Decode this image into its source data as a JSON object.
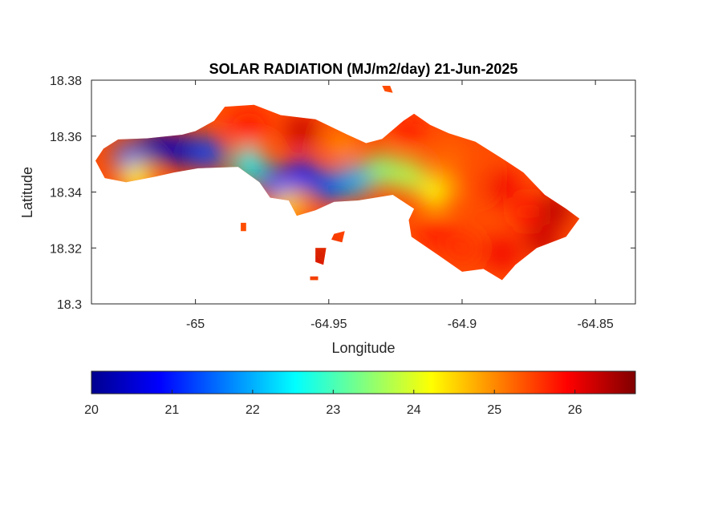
{
  "chart_data": {
    "type": "heatmap",
    "title": "SOLAR RADIATION (MJ/m2/day) 21-Jun-2025",
    "xlabel": "Longitude",
    "ylabel": "Latitude",
    "xlim": [
      -65.039,
      -64.835
    ],
    "ylim": [
      18.3,
      18.38
    ],
    "x_ticks": [
      -65,
      -64.95,
      -64.9,
      -64.85
    ],
    "y_ticks": [
      18.3,
      18.32,
      18.34,
      18.36,
      18.38
    ],
    "x_tick_labels": [
      "-65",
      "-64.95",
      "-64.9",
      "-64.85"
    ],
    "y_tick_labels": [
      "18.3",
      "18.32",
      "18.34",
      "18.36",
      "18.38"
    ],
    "grid": false,
    "colormap": "jet",
    "colorbar": {
      "orientation": "horizontal",
      "location": "below",
      "limits": [
        20,
        26.75
      ],
      "ticks": [
        20,
        21,
        22,
        23,
        24,
        25,
        26
      ],
      "tick_labels": [
        "20",
        "21",
        "22",
        "23",
        "24",
        "25",
        "26"
      ],
      "colors": [
        "#00008f",
        "#0000ff",
        "#0080ff",
        "#00ffff",
        "#80ff80",
        "#ffff00",
        "#ff8000",
        "#ff0000",
        "#800000"
      ]
    },
    "island_outline": [
      [
        -65.0375,
        18.3512
      ],
      [
        -65.0345,
        18.3555
      ],
      [
        -65.029,
        18.3588
      ],
      [
        -65.018,
        18.3592
      ],
      [
        -65.005,
        18.3605
      ],
      [
        -65.0,
        18.3618
      ],
      [
        -64.993,
        18.3655
      ],
      [
        -64.989,
        18.3705
      ],
      [
        -64.978,
        18.3712
      ],
      [
        -64.968,
        18.3675
      ],
      [
        -64.955,
        18.366
      ],
      [
        -64.943,
        18.3605
      ],
      [
        -64.936,
        18.3575
      ],
      [
        -64.93,
        18.359
      ],
      [
        -64.922,
        18.3655
      ],
      [
        -64.918,
        18.368
      ],
      [
        -64.912,
        18.364
      ],
      [
        -64.905,
        18.361
      ],
      [
        -64.895,
        18.358
      ],
      [
        -64.885,
        18.352
      ],
      [
        -64.877,
        18.347
      ],
      [
        -64.869,
        18.339
      ],
      [
        -64.861,
        18.334
      ],
      [
        -64.856,
        18.3305
      ],
      [
        -64.861,
        18.324
      ],
      [
        -64.872,
        18.32
      ],
      [
        -64.88,
        18.314
      ],
      [
        -64.885,
        18.3085
      ],
      [
        -64.892,
        18.3125
      ],
      [
        -64.9,
        18.3115
      ],
      [
        -64.909,
        18.3175
      ],
      [
        -64.919,
        18.324
      ],
      [
        -64.92,
        18.33
      ],
      [
        -64.918,
        18.334
      ],
      [
        -64.926,
        18.339
      ],
      [
        -64.939,
        18.337
      ],
      [
        -64.948,
        18.3365
      ],
      [
        -64.955,
        18.3335
      ],
      [
        -64.962,
        18.3315
      ],
      [
        -64.965,
        18.337
      ],
      [
        -64.972,
        18.338
      ],
      [
        -64.976,
        18.3435
      ],
      [
        -64.984,
        18.349
      ],
      [
        -64.999,
        18.3485
      ],
      [
        -65.008,
        18.347
      ],
      [
        -65.015,
        18.3455
      ],
      [
        -65.026,
        18.3435
      ],
      [
        -65.034,
        18.345
      ]
    ],
    "islets": [
      [
        [
          -64.948,
          18.325
        ],
        [
          -64.944,
          18.326
        ],
        [
          -64.945,
          18.322
        ],
        [
          -64.949,
          18.323
        ]
      ],
      [
        [
          -64.955,
          18.32
        ],
        [
          -64.951,
          18.32
        ],
        [
          -64.952,
          18.314
        ],
        [
          -64.955,
          18.315
        ]
      ],
      [
        [
          -64.957,
          18.3098
        ],
        [
          -64.954,
          18.3098
        ],
        [
          -64.954,
          18.3085
        ],
        [
          -64.957,
          18.3085
        ]
      ],
      [
        [
          -64.93,
          18.378
        ],
        [
          -64.927,
          18.378
        ],
        [
          -64.926,
          18.3755
        ],
        [
          -64.929,
          18.376
        ]
      ],
      [
        [
          -64.983,
          18.329
        ],
        [
          -64.981,
          18.329
        ],
        [
          -64.981,
          18.326
        ],
        [
          -64.983,
          18.326
        ]
      ]
    ],
    "radiation_samples": [
      {
        "lon": -65.025,
        "lat": 18.352,
        "value": 21.5
      },
      {
        "lon": -65.022,
        "lat": 18.345,
        "value": 24.3
      },
      {
        "lon": -65.015,
        "lat": 18.356,
        "value": 20.3
      },
      {
        "lon": -65.005,
        "lat": 18.355,
        "value": 20.4
      },
      {
        "lon": -64.995,
        "lat": 18.354,
        "value": 21.3
      },
      {
        "lon": -64.98,
        "lat": 18.35,
        "value": 22.5
      },
      {
        "lon": -64.97,
        "lat": 18.343,
        "value": 21.3
      },
      {
        "lon": -64.96,
        "lat": 18.346,
        "value": 21.0
      },
      {
        "lon": -64.965,
        "lat": 18.335,
        "value": 24.5
      },
      {
        "lon": -64.95,
        "lat": 18.342,
        "value": 21.4
      },
      {
        "lon": -64.94,
        "lat": 18.344,
        "value": 22.0
      },
      {
        "lon": -64.98,
        "lat": 18.363,
        "value": 25.8
      },
      {
        "lon": -64.96,
        "lat": 18.362,
        "value": 26.3
      },
      {
        "lon": -64.945,
        "lat": 18.357,
        "value": 25.0
      },
      {
        "lon": -64.93,
        "lat": 18.348,
        "value": 23.4
      },
      {
        "lon": -64.92,
        "lat": 18.346,
        "value": 23.7
      },
      {
        "lon": -64.91,
        "lat": 18.34,
        "value": 24.2
      },
      {
        "lon": -64.92,
        "lat": 18.362,
        "value": 25.7
      },
      {
        "lon": -64.905,
        "lat": 18.352,
        "value": 25.2
      },
      {
        "lon": -64.895,
        "lat": 18.345,
        "value": 25.4
      },
      {
        "lon": -64.885,
        "lat": 18.342,
        "value": 26.0
      },
      {
        "lon": -64.875,
        "lat": 18.333,
        "value": 25.7
      },
      {
        "lon": -64.865,
        "lat": 18.334,
        "value": 26.4
      },
      {
        "lon": -64.91,
        "lat": 18.325,
        "value": 25.7
      },
      {
        "lon": -64.9,
        "lat": 18.32,
        "value": 25.6
      },
      {
        "lon": -64.885,
        "lat": 18.318,
        "value": 26.0
      },
      {
        "lon": -64.87,
        "lat": 18.323,
        "value": 26.3
      },
      {
        "lon": -64.947,
        "lat": 18.324,
        "value": 25.5
      },
      {
        "lon": -64.953,
        "lat": 18.317,
        "value": 26.3
      }
    ]
  }
}
